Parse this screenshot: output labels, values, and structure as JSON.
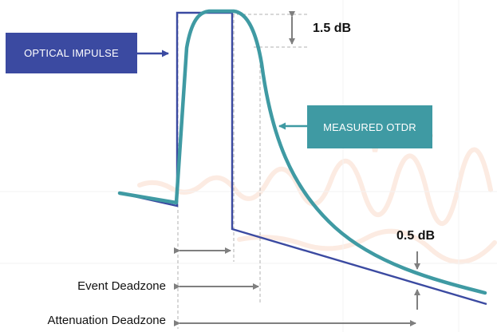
{
  "boxes": {
    "optical_impulse": "OPTICAL IMPULSE",
    "measured_otdr": "MEASURED OTDR"
  },
  "annotations": {
    "peak_drop": "1.5 dB",
    "backscatter_drop": "0.5 dB"
  },
  "deadzones": {
    "event": "Event Deadzone",
    "attenuation": "Attenuation Deadzone"
  },
  "colors": {
    "impulse": "#3b4aa1",
    "otdr": "#3f9aa3",
    "dimension": "#7f7f7f",
    "guide": "#b0b0b0",
    "background_trace": "#fbe3d6"
  }
}
